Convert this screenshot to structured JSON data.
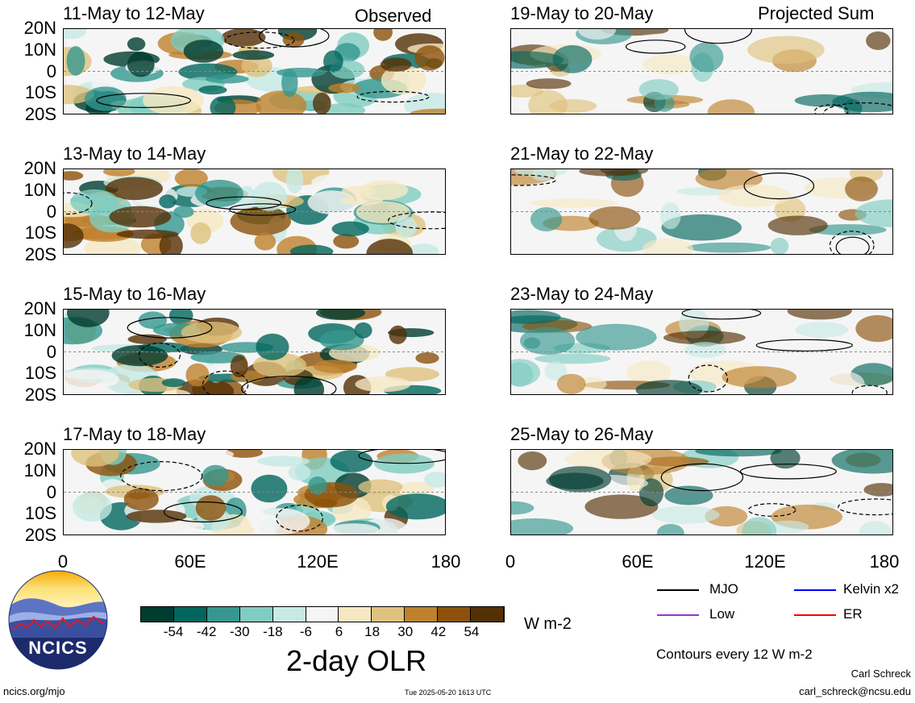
{
  "panels_left": [
    {
      "title": "11-May to 12-May",
      "label": "Observed"
    },
    {
      "title": "13-May to 14-May",
      "label": ""
    },
    {
      "title": "15-May to 16-May",
      "label": ""
    },
    {
      "title": "17-May to 18-May",
      "label": ""
    }
  ],
  "panels_right": [
    {
      "title": "19-May to 20-May",
      "label": "Projected Sum"
    },
    {
      "title": "21-May to 22-May",
      "label": ""
    },
    {
      "title": "23-May to 24-May",
      "label": ""
    },
    {
      "title": "25-May to 26-May",
      "label": ""
    }
  ],
  "lat_labels": [
    "20N",
    "10N",
    "0",
    "10S",
    "20S"
  ],
  "lon_labels": [
    "0",
    "60E",
    "120E",
    "180"
  ],
  "colorbar": {
    "title": "2-day OLR",
    "units": "W m-2",
    "tick_labels": [
      "-54",
      "-42",
      "-30",
      "-18",
      "-6",
      "6",
      "18",
      "30",
      "42",
      "54"
    ],
    "colors": [
      "#003c30",
      "#01665e",
      "#35978f",
      "#80cdc1",
      "#c7eae5",
      "#f5f5f5",
      "#f6e8c3",
      "#dfc27d",
      "#bf812d",
      "#8c510a",
      "#543005"
    ]
  },
  "legend": {
    "items": [
      {
        "label": "MJO",
        "color": "#000000"
      },
      {
        "label": "Kelvin x2",
        "color": "#0000ff"
      },
      {
        "label": "Low",
        "color": "#9933cc"
      },
      {
        "label": "ER",
        "color": "#ff0000"
      }
    ],
    "contour_note": "Contours every 12 W m-2"
  },
  "logo": {
    "text": "NCICS"
  },
  "footer": {
    "url": "ncics.org/mjo",
    "timestamp": "Tue 2025-05-20 1613 UTC",
    "author": "Carl Schreck",
    "email": "carl_schreck@ncsu.edu"
  }
}
